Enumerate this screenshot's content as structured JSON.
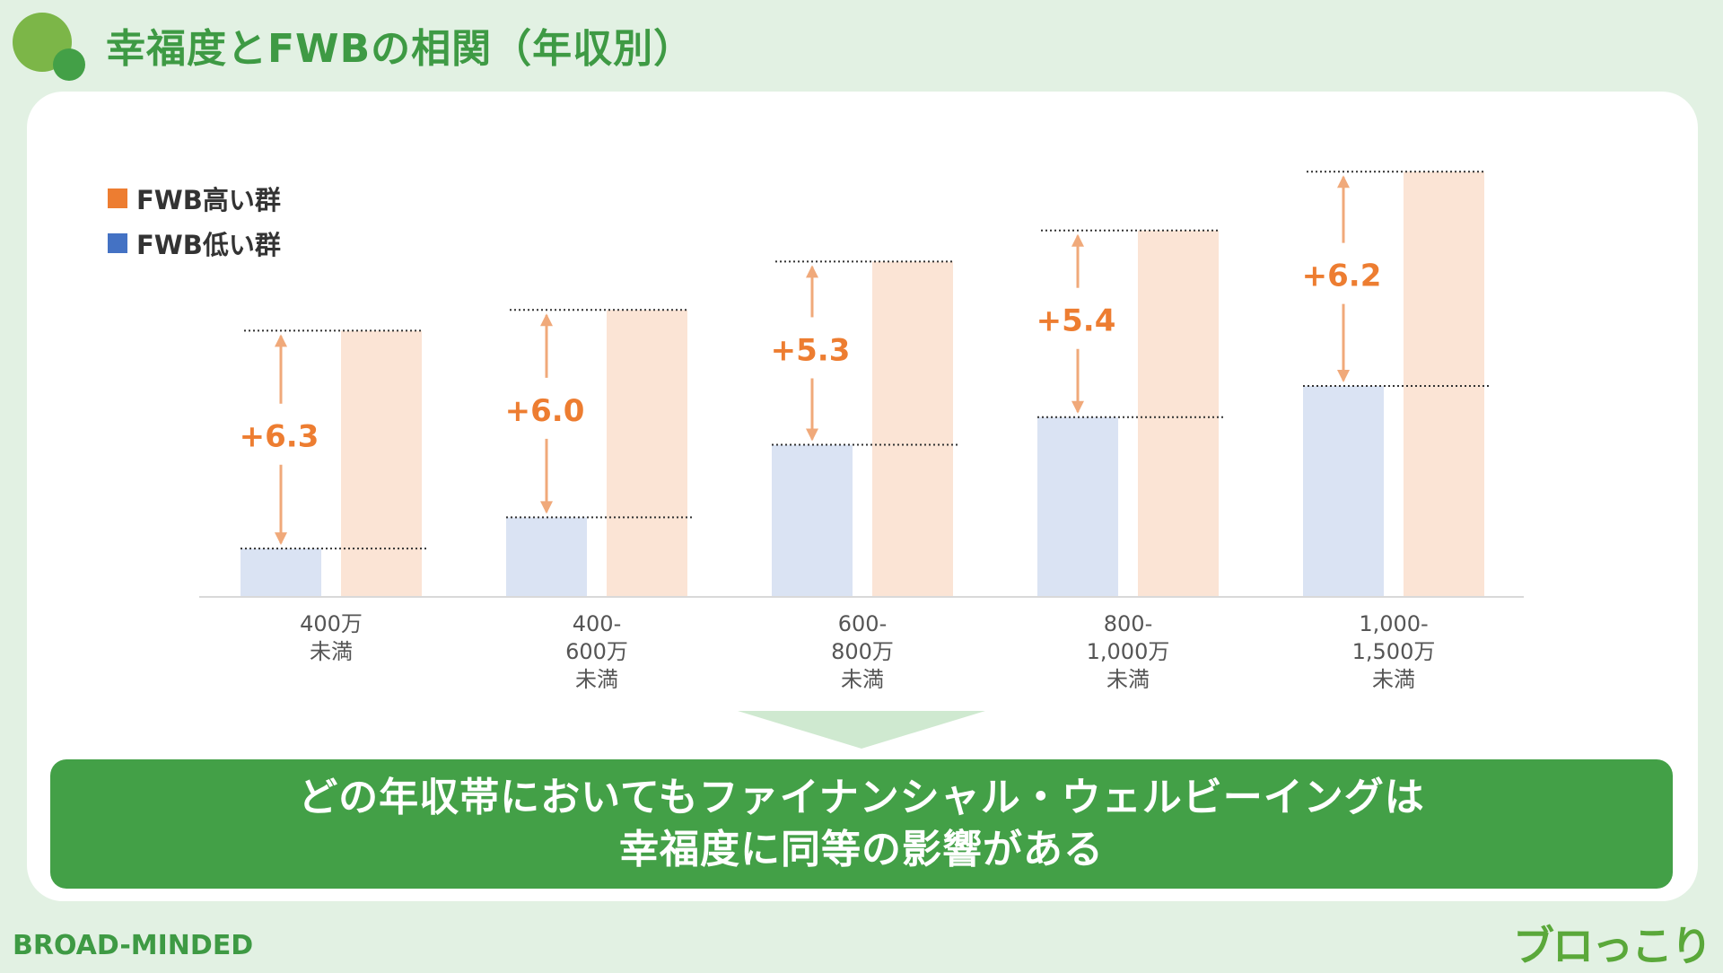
{
  "header": {
    "title": "幸福度とFWBの相関（年収別）"
  },
  "chart_data": {
    "type": "bar",
    "categories": [
      [
        "400万",
        "未満"
      ],
      [
        "400-",
        "600万",
        "未満"
      ],
      [
        "600-",
        "800万",
        "未満"
      ],
      [
        "800-",
        "1,000万",
        "未満"
      ],
      [
        "1,000-",
        "1,500万",
        "未満"
      ]
    ],
    "series": [
      {
        "name": "FWB高い群",
        "color": "#ed7d31",
        "fill": "#fbe4d5",
        "values": [
          55.2,
          55.8,
          57.2,
          58.1,
          59.8
        ]
      },
      {
        "name": "FWB低い群",
        "color": "#4472c4",
        "fill": "#dae3f3",
        "values": [
          48.9,
          49.8,
          51.9,
          52.7,
          53.6
        ]
      }
    ],
    "differences": [
      "+6.3",
      "+6.0",
      "+5.3",
      "+5.4",
      "+6.2"
    ],
    "ylim": [
      47.5,
      61.0
    ],
    "legend_position": "top-left",
    "grid": false
  },
  "banner": {
    "line1": "どの年収帯においてもファイナンシャル・ウェルビーイングは",
    "line2": "幸福度に同等の影響がある"
  },
  "footer": {
    "brand": "BROAD-MINDED",
    "logo_text": "ブロっこり"
  }
}
